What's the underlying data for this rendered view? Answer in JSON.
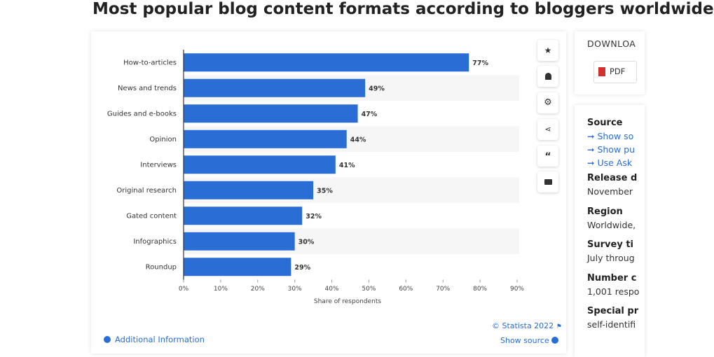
{
  "header": {
    "title": "Most popular blog content formats according to bloggers worldwide"
  },
  "chart_data": {
    "type": "bar",
    "orientation": "horizontal",
    "categories": [
      "How-to-articles",
      "News and trends",
      "Guides and e-books",
      "Opinion",
      "Interviews",
      "Original research",
      "Gated content",
      "Infographics",
      "Roundup"
    ],
    "values": [
      77,
      49,
      47,
      44,
      41,
      35,
      32,
      30,
      29
    ],
    "value_labels": [
      "77%",
      "49%",
      "47%",
      "44%",
      "41%",
      "35%",
      "32%",
      "30%",
      "29%"
    ],
    "color": "#2a6dd5",
    "xlabel": "Share of respondents",
    "xlim": [
      0,
      90
    ],
    "xticks": [
      {
        "value": 0,
        "label": "0%"
      },
      {
        "value": 10,
        "label": "10%"
      },
      {
        "value": 20,
        "label": "20%"
      },
      {
        "value": 30,
        "label": "30%"
      },
      {
        "value": 40,
        "label": "40%"
      },
      {
        "value": 50,
        "label": "50%"
      },
      {
        "value": 60,
        "label": "60%"
      },
      {
        "value": 70,
        "label": "70%"
      },
      {
        "value": 80,
        "label": "80%"
      },
      {
        "value": 90,
        "label": "90%"
      }
    ]
  },
  "footer": {
    "credit": "© Statista 2022",
    "additional": "Additional Information",
    "source": "Show source"
  },
  "sidebar": {
    "download": "DOWNLOA",
    "pdf": "PDF",
    "source_title": "Source",
    "source_links": [
      "Show so",
      "Show pu",
      "Use Ask"
    ],
    "items": [
      {
        "title": "Release d",
        "text": "November"
      },
      {
        "title": "Region",
        "text": "Worldwide,"
      },
      {
        "title": "Survey ti",
        "text": "July throug"
      },
      {
        "title": "Number c",
        "text": "1,001 respo"
      },
      {
        "title": "Special pr",
        "text": "self-identifi"
      }
    ]
  }
}
